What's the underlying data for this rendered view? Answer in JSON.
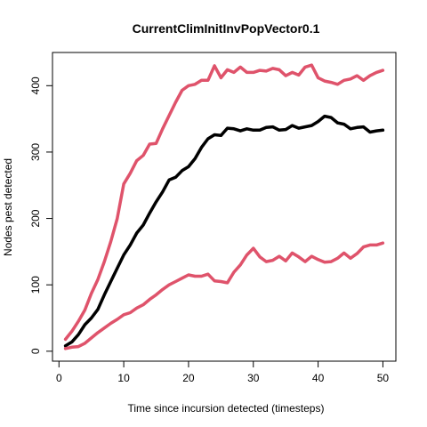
{
  "chart_data": {
    "type": "line",
    "title": "CurrentClimInitInvPopVector0.1",
    "xlabel": "Time since incursion detected (timesteps)",
    "ylabel": "Nodes pest detected",
    "xlim": [
      -1,
      52
    ],
    "ylim": [
      -15,
      450
    ],
    "xticks": [
      0,
      10,
      20,
      30,
      40,
      50
    ],
    "yticks": [
      0,
      100,
      200,
      300,
      400
    ],
    "grid": false,
    "legend": "none",
    "x": [
      1,
      2,
      3,
      4,
      5,
      6,
      7,
      8,
      9,
      10,
      11,
      12,
      13,
      14,
      15,
      16,
      17,
      18,
      19,
      20,
      21,
      22,
      23,
      24,
      25,
      26,
      27,
      28,
      29,
      30,
      31,
      32,
      33,
      34,
      35,
      36,
      37,
      38,
      39,
      40,
      41,
      42,
      43,
      44,
      45,
      46,
      47,
      48,
      49,
      50
    ],
    "series": [
      {
        "color": "#DF536B",
        "values": [
          18,
          30,
          45,
          62,
          87,
          108,
          135,
          165,
          200,
          252,
          268,
          287,
          295,
          312,
          313,
          335,
          355,
          375,
          393,
          400,
          402,
          408,
          408,
          430,
          412,
          424,
          420,
          428,
          420,
          420,
          423,
          422,
          426,
          424,
          415,
          420,
          416,
          428,
          431,
          412,
          407,
          405,
          402,
          408,
          410,
          415,
          408,
          415,
          420,
          423
        ]
      },
      {
        "color": "#000000",
        "values": [
          8,
          14,
          25,
          40,
          50,
          63,
          85,
          105,
          125,
          145,
          160,
          178,
          190,
          208,
          225,
          240,
          258,
          262,
          272,
          278,
          290,
          307,
          320,
          326,
          325,
          336,
          335,
          332,
          335,
          333,
          333,
          337,
          338,
          333,
          334,
          340,
          336,
          338,
          340,
          346,
          354,
          352,
          344,
          342,
          335,
          337,
          338,
          330,
          332,
          333
        ]
      },
      {
        "color": "#DF536B",
        "values": [
          4,
          6,
          7,
          12,
          20,
          28,
          35,
          42,
          48,
          55,
          58,
          65,
          70,
          78,
          85,
          93,
          100,
          105,
          110,
          115,
          113,
          113,
          116,
          106,
          105,
          103,
          119,
          130,
          145,
          155,
          142,
          135,
          137,
          143,
          136,
          148,
          142,
          135,
          143,
          138,
          134,
          135,
          140,
          148,
          140,
          147,
          157,
          160,
          160,
          163
        ]
      }
    ]
  }
}
